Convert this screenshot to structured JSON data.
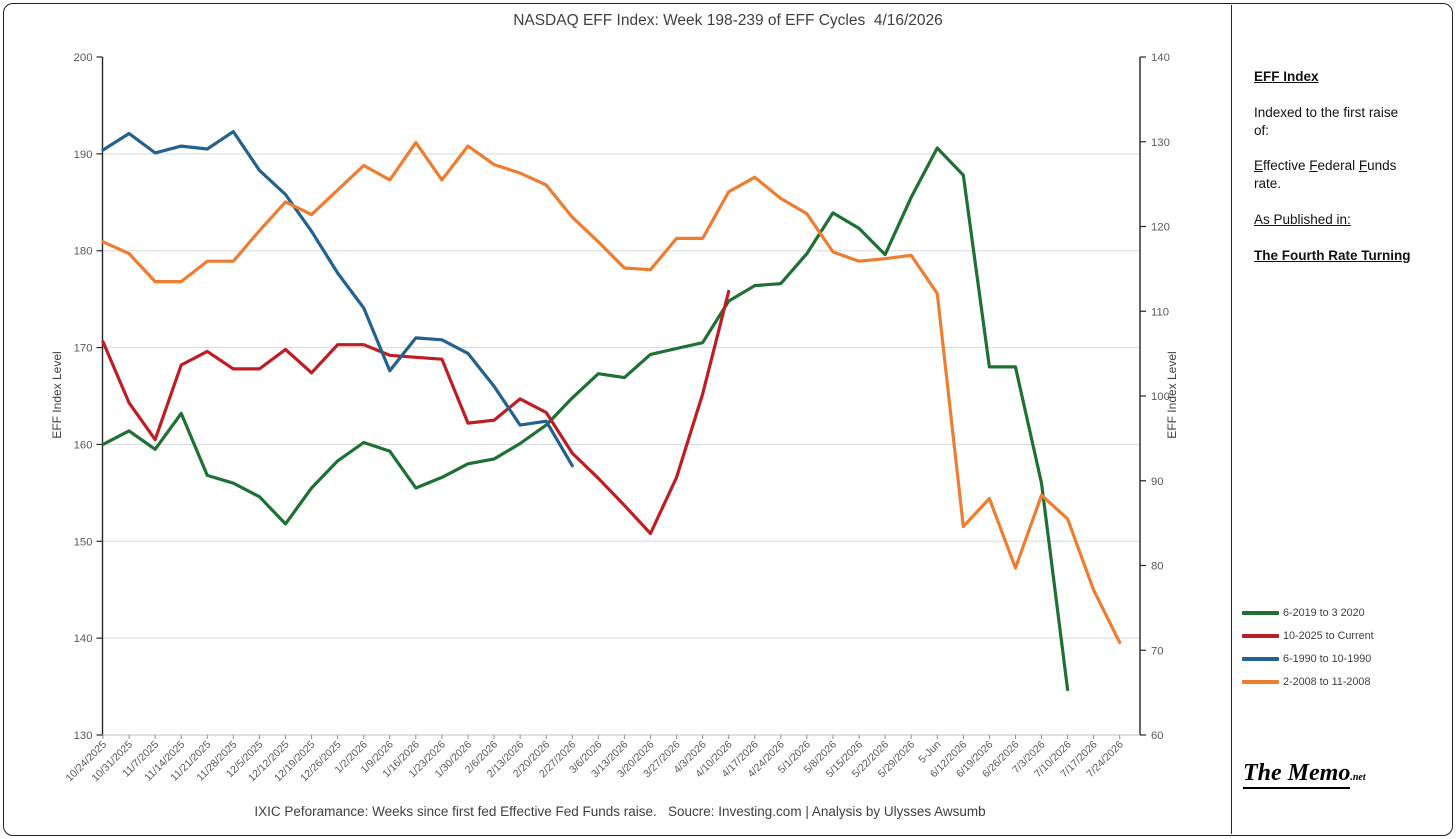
{
  "title": "NASDAQ EFF Index: Week 198-239 of EFF Cycles  4/16/2026",
  "caption": "IXIC Peforamance: Weeks since first fed Effective Fed Funds raise.   Soucre: Investing.com | Analysis by Ulysses Awsumb",
  "left_axis": {
    "title": "EFF Index Level",
    "ticks": [
      130,
      140,
      150,
      160,
      170,
      180,
      190,
      200
    ]
  },
  "right_axis": {
    "title": "EFF Index Level",
    "ticks": [
      60,
      70,
      80,
      90,
      100,
      110,
      120,
      130,
      140
    ]
  },
  "side_panel": {
    "heading": "EFF Index",
    "para1": "Indexed to the first raise of:",
    "eff_segments": [
      [
        "E",
        true
      ],
      [
        "ffective ",
        false
      ],
      [
        "F",
        true
      ],
      [
        "ederal ",
        false
      ],
      [
        "F",
        true
      ],
      [
        "unds rate.",
        false
      ]
    ],
    "para3": "As Published in:",
    "para4": "The Fourth Rate Turning"
  },
  "logo": {
    "main": "The Memo",
    "suffix": ".net"
  },
  "chart_data": {
    "type": "line",
    "title": "NASDAQ EFF Index: Week 198-239 of EFF Cycles 4/16/2026",
    "x_labels": [
      "10/24/2025",
      "10/31/2025",
      "11/7/2025",
      "11/14/2025",
      "11/21/2025",
      "11/28/2025",
      "12/5/2025",
      "12/12/2025",
      "12/19/2025",
      "12/26/2025",
      "1/2/2026",
      "1/9/2026",
      "1/16/2026",
      "1/23/2026",
      "1/30/2026",
      "2/6/2026",
      "2/13/2026",
      "2/20/2026",
      "2/27/2026",
      "3/6/2026",
      "3/13/2026",
      "3/20/2026",
      "3/27/2026",
      "4/3/2026",
      "4/10/2026",
      "4/17/2026",
      "4/24/2026",
      "5/1/2026",
      "5/8/2026",
      "5/15/2026",
      "5/22/2026",
      "5/29/2026",
      "5-Jun",
      "6/12/2026",
      "6/19/2026",
      "6/26/2026",
      "7/3/2026",
      "7/10/2026",
      "7/17/2026",
      "7/24/2026"
    ],
    "axes": {
      "left": {
        "label": "EFF Index Level",
        "range": [
          130,
          200
        ],
        "grid_values": [
          140,
          150,
          160,
          170,
          180,
          190
        ]
      },
      "right": {
        "label": "EFF Index Level",
        "range": [
          60,
          140
        ]
      }
    },
    "grid": true,
    "legend_position": "right",
    "series": [
      {
        "name": "6-2019 to 3 2020",
        "color": "#1E7033",
        "axis": "left",
        "values": [
          160.0,
          161.4,
          159.5,
          163.2,
          156.8,
          156.0,
          154.6,
          151.8,
          155.5,
          158.3,
          160.2,
          159.3,
          155.5,
          156.6,
          158.0,
          158.5,
          160.1,
          162.0,
          164.8,
          167.3,
          166.9,
          169.3,
          169.9,
          170.5,
          174.8,
          176.4,
          176.6,
          179.7,
          183.9,
          182.3,
          179.6,
          185.5,
          190.6,
          187.8,
          168.0,
          168.0,
          156.0,
          134.7
        ]
      },
      {
        "name": "10-2025 to Current",
        "color": "#BE1E23",
        "axis": "left",
        "values": [
          170.6,
          164.3,
          160.5,
          168.2,
          169.6,
          167.8,
          167.8,
          169.8,
          167.4,
          170.3,
          170.3,
          169.2,
          169.0,
          168.8,
          162.2,
          162.5,
          164.7,
          163.3,
          159.1,
          156.5,
          153.7,
          150.8,
          156.6,
          165.2,
          175.8
        ]
      },
      {
        "name": "6-1990 to 10-1990",
        "color": "#23628F",
        "axis": "left",
        "values": [
          190.4,
          192.1,
          190.1,
          190.8,
          190.5,
          192.3,
          188.3,
          185.8,
          182.0,
          177.7,
          174.1,
          167.6,
          171.0,
          170.8,
          169.4,
          166.0,
          162.0,
          162.4,
          157.8
        ]
      },
      {
        "name": "2-2008 to 11-2008",
        "color": "#ED7D31",
        "axis": "right",
        "values": [
          118.2,
          116.8,
          113.5,
          113.5,
          115.9,
          115.9,
          119.5,
          122.9,
          121.4,
          124.3,
          127.2,
          125.5,
          129.9,
          125.5,
          129.5,
          127.3,
          126.3,
          124.9,
          121.1,
          118.2,
          115.1,
          114.9,
          118.6,
          118.6,
          124.1,
          125.8,
          123.3,
          121.5,
          117.0,
          115.9,
          116.2,
          116.6,
          112.1,
          84.6,
          87.9,
          79.7,
          88.3,
          85.5,
          77.1,
          70.9
        ]
      }
    ]
  }
}
